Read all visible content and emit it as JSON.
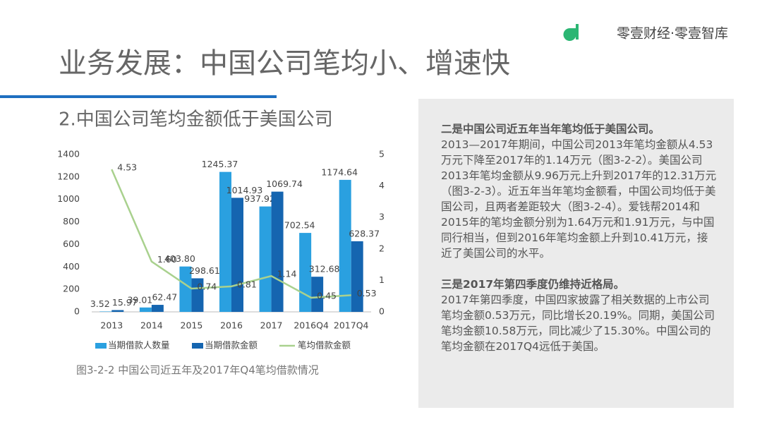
{
  "header": {
    "title": "业务发展：中国公司笔均小、增速快",
    "logo": "零壹财经·零壹智库"
  },
  "subtitle": "2.中国公司笔均金额低于美国公司",
  "caption": "图3-2-2 中国公司近五年及2017年Q4笔均借款情况",
  "paragraphs": [
    {
      "heading": "二是中国公司近五年当年笔均低于美国公司。",
      "body": "2013—2017年期间，中国公司2013年笔均金额从4.53万元下降至2017年的1.14万元（图3-2-2）。美国公司2013年笔均金额从9.96万元上升到2017年的12.31万元（图3-2-3）。近五年当年笔均金额看，中国公司均低于美国公司，且两者差距较大（图3-2-4）。爱钱帮2014和2015年的笔均金额分别为1.64万元和1.91万元，与中国同行相当，但到2016年笔均金额上升到10.41万元，接近了美国公司的水平。"
    },
    {
      "heading": "三是2017年第四季度仍维持近格局。",
      "body": "2017年第四季度，中国四家披露了相关数据的上市公司笔均金额0.53万元，同比增长20.19%。同期，美国公司笔均金额10.58万元，同比减少了15.30%。中国公司的笔均金额在2017Q4远低于美国。"
    }
  ],
  "chart_data": {
    "type": "bar",
    "categories": [
      "2013",
      "2014",
      "2015",
      "2016",
      "2017",
      "2016Q4",
      "2017Q4"
    ],
    "series": [
      {
        "name": "当期借款人数量",
        "color": "#2aa0e0",
        "values": [
          3.52,
          39.01,
          403.8,
          1245.37,
          937.92,
          702.54,
          1174.64
        ],
        "value_labels": [
          "3.52",
          "39.01",
          "403.80",
          "1245.37",
          "937.92",
          "702.54",
          "1174.64"
        ]
      },
      {
        "name": "当期借款金额",
        "color": "#1565b0",
        "values": [
          15.97,
          62.47,
          298.61,
          1014.93,
          1069.74,
          312.68,
          628.37
        ],
        "value_labels": [
          "15.97",
          "62.47",
          "298.61",
          "1014.93",
          "1069.74",
          "312.68",
          "628.37"
        ]
      },
      {
        "name": "笔均借款金额",
        "type": "line",
        "axis": "y2",
        "color": "#a9d18e",
        "values": [
          4.53,
          1.6,
          0.74,
          0.81,
          1.14,
          0.45,
          0.53
        ],
        "value_labels": [
          "4.53",
          "1.60",
          "0.74",
          "0.81",
          "1.14",
          "0.45",
          "0.53"
        ]
      }
    ],
    "ylim": [
      0,
      1400
    ],
    "yticks": [
      0,
      200,
      400,
      600,
      800,
      1000,
      1200,
      1400
    ],
    "y2lim": [
      0,
      5
    ],
    "y2ticks": [
      0,
      1,
      2,
      3,
      4,
      5
    ],
    "grid": false
  }
}
